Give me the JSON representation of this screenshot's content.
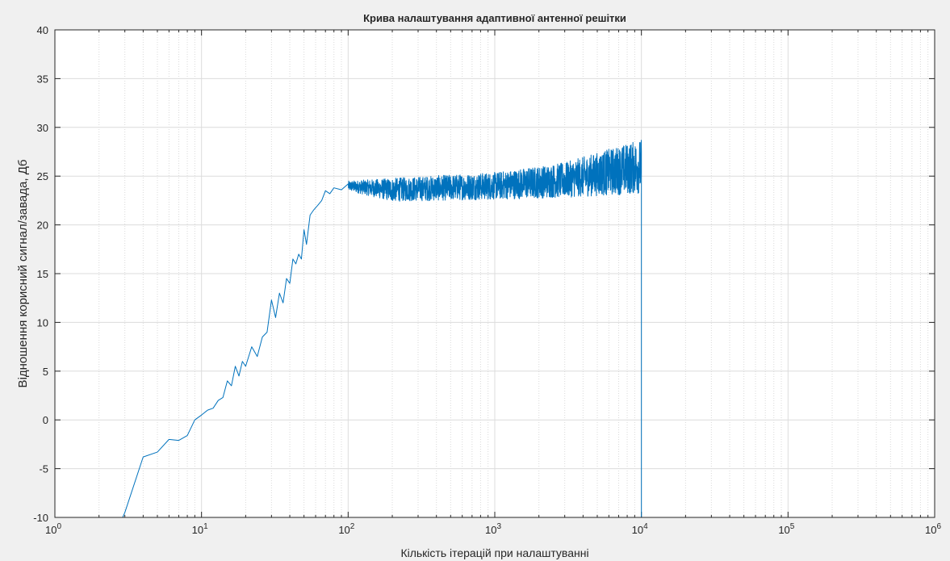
{
  "chart_data": {
    "type": "line",
    "title": "Крива налаштування адаптивної антенної решітки",
    "xlabel": "Кількість ітерацій при налаштуванні",
    "ylabel": "Відношення корисний сигнал/завада, Дб",
    "xscale": "log",
    "xlim": [
      1,
      1000000
    ],
    "ylim": [
      -10,
      40
    ],
    "grid": true,
    "line_color": "#0072bd",
    "x_ticks": [
      {
        "base": "10",
        "exp": "0"
      },
      {
        "base": "10",
        "exp": "1"
      },
      {
        "base": "10",
        "exp": "2"
      },
      {
        "base": "10",
        "exp": "3"
      },
      {
        "base": "10",
        "exp": "4"
      },
      {
        "base": "10",
        "exp": "5"
      },
      {
        "base": "10",
        "exp": "6"
      }
    ],
    "y_ticks": [
      "-10",
      "-5",
      "0",
      "5",
      "10",
      "15",
      "20",
      "25",
      "30",
      "35",
      "40"
    ],
    "series_points": {
      "x": [
        2.9,
        3,
        4,
        5,
        6,
        7,
        8,
        9,
        10,
        11,
        12,
        13,
        14,
        15,
        16,
        17,
        18,
        19,
        20,
        22,
        24,
        26,
        28,
        30,
        32,
        34,
        36,
        38,
        40,
        42,
        44,
        46,
        48,
        50,
        52,
        55,
        58,
        62,
        66,
        70,
        75,
        80,
        90,
        100
      ],
      "y": [
        -10,
        -9.5,
        -3.8,
        -3.3,
        -2,
        -2.1,
        -1.6,
        0,
        0.5,
        1,
        1.2,
        2,
        2.3,
        4,
        3.5,
        5.5,
        4.5,
        6,
        5.5,
        7.5,
        6.5,
        8.5,
        9,
        12.3,
        10.5,
        13,
        12,
        14.5,
        14,
        16.5,
        16,
        17,
        16.5,
        19.5,
        18,
        21,
        21.5,
        22,
        22.5,
        23.5,
        23.2,
        23.8,
        23.6,
        24.2
      ]
    },
    "noise_band": {
      "description_ranges": [
        {
          "x": 100,
          "mean": 24.0,
          "spread": 0.5
        },
        {
          "x": 200,
          "mean": 23.6,
          "spread": 1.2
        },
        {
          "x": 1000,
          "mean": 24.0,
          "spread": 1.4
        },
        {
          "x": 3000,
          "mean": 24.6,
          "spread": 1.8
        },
        {
          "x": 10000,
          "mean": 26.0,
          "spread": 2.8
        }
      ],
      "end_x": 10000,
      "drop_to": -10
    }
  }
}
